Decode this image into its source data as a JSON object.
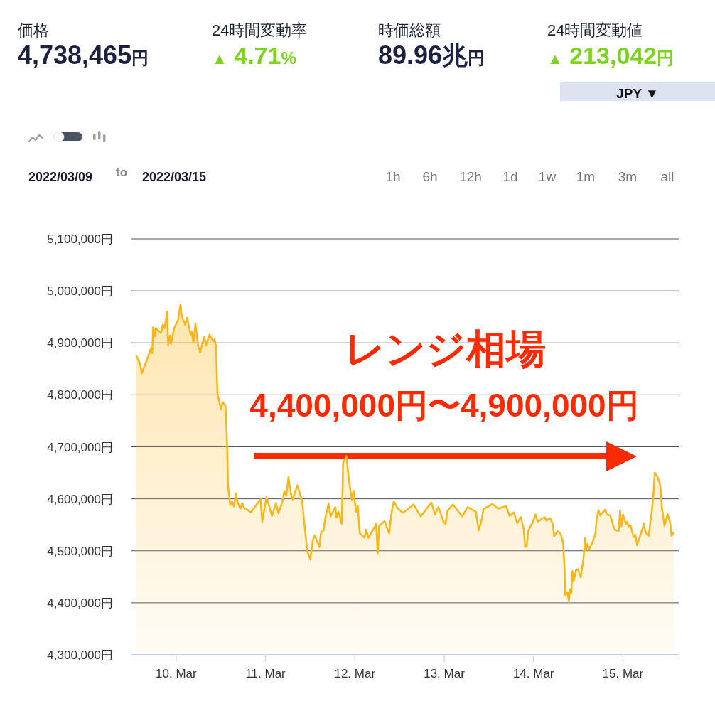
{
  "chart_data": {
    "type": "area",
    "x": [
      "2022-03-09T13:18",
      "2022-03-09T14:12",
      "2022-03-09T14:50",
      "2022-03-09T15:20",
      "2022-03-09T16:06",
      "2022-03-09T17:11",
      "2022-03-09T17:34",
      "2022-03-09T17:49",
      "2022-03-09T18:12",
      "2022-03-09T18:31",
      "2022-03-09T19:55",
      "2022-03-09T20:26",
      "2022-03-09T20:53",
      "2022-03-09T21:35",
      "2022-03-09T21:50",
      "2022-03-09T22:21",
      "2022-03-09T22:36",
      "2022-03-09T23:26",
      "2022-03-10T00:31",
      "2022-03-10T01:09",
      "2022-03-10T01:32",
      "2022-03-10T02:25",
      "2022-03-10T02:56",
      "2022-03-10T03:53",
      "2022-03-10T04:12",
      "2022-03-10T04:39",
      "2022-03-10T05:10",
      "2022-03-10T05:55",
      "2022-03-10T06:26",
      "2022-03-10T07:31",
      "2022-03-10T08:02",
      "2022-03-10T08:59",
      "2022-03-10T09:56",
      "2022-03-10T10:19",
      "2022-03-10T10:42",
      "2022-03-10T11:05",
      "2022-03-10T12:02",
      "2022-03-10T12:29",
      "2022-03-10T13:15",
      "2022-03-10T13:37",
      "2022-03-10T13:57",
      "2022-03-10T14:31",
      "2022-03-10T15:02",
      "2022-03-10T15:32",
      "2022-03-10T16:00",
      "2022-03-10T16:26",
      "2022-03-10T17:15",
      "2022-03-10T17:43",
      "2022-03-10T18:13",
      "2022-03-10T20:07",
      "2022-03-10T21:55",
      "2022-03-10T22:41",
      "2022-03-10T23:07",
      "2022-03-11T00:16",
      "2022-03-11T01:44",
      "2022-03-11T02:49",
      "2022-03-11T03:28",
      "2022-03-11T04:32",
      "2022-03-11T05:03",
      "2022-03-11T05:34",
      "2022-03-11T06:11",
      "2022-03-11T06:49",
      "2022-03-11T07:17",
      "2022-03-11T08:33",
      "2022-03-11T09:49",
      "2022-03-11T10:27",
      "2022-03-11T11:13",
      "2022-03-11T12:03",
      "2022-03-11T12:41",
      "2022-03-11T13:12",
      "2022-03-11T14:28",
      "2022-03-11T14:55",
      "2022-03-11T15:33",
      "2022-03-11T16:00",
      "2022-03-11T16:57",
      "2022-03-11T17:28",
      "2022-03-11T18:45",
      "2022-03-11T19:03",
      "2022-03-11T19:34",
      "2022-03-11T20:28",
      "2022-03-11T20:51",
      "2022-03-11T21:44",
      "2022-03-11T22:26",
      "2022-03-11T23:12",
      "2022-03-11T23:38",
      "2022-03-12T00:21",
      "2022-03-12T00:47",
      "2022-03-12T01:18",
      "2022-03-12T02:35",
      "2022-03-12T03:01",
      "2022-03-12T03:39",
      "2022-03-12T05:15",
      "2022-03-12T05:42",
      "2022-03-12T06:08",
      "2022-03-12T06:31",
      "2022-03-12T07:59",
      "2022-03-12T09:11",
      "2022-03-12T10:02",
      "2022-03-12T10:28",
      "2022-03-12T11:29",
      "2022-03-12T12:54",
      "2022-03-12T15:46",
      "2022-03-12T17:40",
      "2022-03-12T20:33",
      "2022-03-12T21:30",
      "2022-03-12T22:27",
      "2022-03-12T23:51",
      "2022-03-13T00:22",
      "2022-03-13T00:52",
      "2022-03-13T02:23",
      "2022-03-13T04:49",
      "2022-03-13T06:17",
      "2022-03-13T08:30",
      "2022-03-13T09:16",
      "2022-03-13T10:02",
      "2022-03-13T10:33",
      "2022-03-13T12:58",
      "2022-03-13T14:30",
      "2022-03-13T16:36",
      "2022-03-13T17:34",
      "2022-03-13T18:42",
      "2022-03-13T19:36",
      "2022-03-13T20:33",
      "2022-03-13T21:23",
      "2022-03-13T21:42",
      "2022-03-13T22:09",
      "2022-03-13T22:32",
      "2022-03-13T23:48",
      "2022-03-14T00:33",
      "2022-03-14T01:04",
      "2022-03-14T02:59",
      "2022-03-14T03:25",
      "2022-03-14T04:23",
      "2022-03-14T05:08",
      "2022-03-14T05:31",
      "2022-03-14T06:25",
      "2022-03-14T07:15",
      "2022-03-14T07:57",
      "2022-03-14T08:20",
      "2022-03-14T08:31",
      "2022-03-14T09:09",
      "2022-03-14T09:29",
      "2022-03-14T09:48",
      "2022-03-14T10:07",
      "2022-03-14T10:26",
      "2022-03-14T10:46",
      "2022-03-14T11:23",
      "2022-03-14T11:54",
      "2022-03-14T12:40",
      "2022-03-14T13:29",
      "2022-03-14T13:49",
      "2022-03-14T14:04",
      "2022-03-14T14:27",
      "2022-03-14T14:53",
      "2022-03-14T15:51",
      "2022-03-14T16:37",
      "2022-03-14T16:59",
      "2022-03-14T17:27",
      "2022-03-14T17:53",
      "2022-03-14T19:13",
      "2022-03-14T19:40",
      "2022-03-14T20:37",
      "2022-03-14T21:28",
      "2022-03-14T21:54",
      "2022-03-14T22:51",
      "2022-03-14T23:14",
      "2022-03-14T23:37",
      "2022-03-15T00:00",
      "2022-03-15T00:46",
      "2022-03-15T01:09",
      "2022-03-15T01:32",
      "2022-03-15T02:02",
      "2022-03-15T02:52",
      "2022-03-15T03:19",
      "2022-03-15T03:49",
      "2022-03-15T04:43",
      "2022-03-15T05:40",
      "2022-03-15T06:03",
      "2022-03-15T06:57",
      "2022-03-15T07:19",
      "2022-03-15T07:47",
      "2022-03-15T08:13",
      "2022-03-15T08:32",
      "2022-03-15T09:22",
      "2022-03-15T10:04",
      "2022-03-15T10:27",
      "2022-03-15T11:09",
      "2022-03-15T11:59",
      "2022-03-15T12:45",
      "2022-03-15T13:03",
      "2022-03-15T13:38"
    ],
    "series": [
      {
        "color": "#fdb515",
        "values": [
          4875000,
          4862000,
          4842000,
          4853000,
          4866000,
          4889000,
          4880000,
          4930000,
          4912000,
          4928000,
          4919000,
          4935000,
          4928000,
          4960000,
          4896000,
          4914000,
          4898000,
          4928000,
          4944000,
          4974000,
          4951000,
          4935000,
          4948000,
          4916000,
          4921000,
          4900000,
          4937000,
          4894000,
          4882000,
          4912000,
          4896000,
          4916000,
          4903000,
          4907000,
          4894000,
          4802000,
          4773000,
          4786000,
          4779000,
          4716000,
          4624000,
          4588000,
          4595000,
          4585000,
          4610000,
          4594000,
          4581000,
          4592000,
          4583000,
          4574000,
          4592000,
          4599000,
          4556000,
          4604000,
          4567000,
          4592000,
          4572000,
          4595000,
          4615000,
          4606000,
          4642000,
          4610000,
          4599000,
          4626000,
          4597000,
          4551000,
          4499000,
          4483000,
          4520000,
          4530000,
          4507000,
          4536000,
          4539000,
          4561000,
          4591000,
          4566000,
          4584000,
          4564000,
          4575000,
          4552000,
          4670000,
          4682000,
          4634000,
          4598000,
          4616000,
          4575000,
          4586000,
          4534000,
          4525000,
          4541000,
          4525000,
          4545000,
          4552000,
          4495000,
          4548000,
          4557000,
          4534000,
          4582000,
          4595000,
          4582000,
          4573000,
          4589000,
          4566000,
          4593000,
          4570000,
          4584000,
          4555000,
          4552000,
          4577000,
          4589000,
          4566000,
          4584000,
          4575000,
          4539000,
          4559000,
          4580000,
          4590000,
          4581000,
          4586000,
          4567000,
          4574000,
          4553000,
          4565000,
          4541000,
          4508000,
          4508000,
          4538000,
          4556000,
          4570000,
          4556000,
          4565000,
          4558000,
          4563000,
          4552000,
          4528000,
          4538000,
          4533000,
          4515000,
          4465000,
          4414000,
          4421000,
          4401000,
          4426000,
          4419000,
          4461000,
          4442000,
          4462000,
          4465000,
          4449000,
          4490000,
          4524000,
          4501000,
          4513000,
          4502000,
          4517000,
          4533000,
          4564000,
          4578000,
          4568000,
          4579000,
          4570000,
          4568000,
          4547000,
          4540000,
          4538000,
          4578000,
          4547000,
          4570000,
          4552000,
          4556000,
          4547000,
          4549000,
          4526000,
          4531000,
          4511000,
          4531000,
          4552000,
          4536000,
          4529000,
          4552000,
          4578000,
          4611000,
          4650000,
          4641000,
          4625000,
          4585000,
          4548000,
          4571000,
          4552000,
          4529000,
          4535000
        ]
      }
    ],
    "xlim": [
      "2022-03-09T12:00",
      "2022-03-15T15:00"
    ],
    "xticks": [
      {
        "value": "2022-03-10",
        "label": "10. Mar"
      },
      {
        "value": "2022-03-11",
        "label": "11. Mar"
      },
      {
        "value": "2022-03-12",
        "label": "12. Mar"
      },
      {
        "value": "2022-03-13",
        "label": "13. Mar"
      },
      {
        "value": "2022-03-14",
        "label": "14. Mar"
      },
      {
        "value": "2022-03-15",
        "label": "15. Mar"
      }
    ],
    "ylim": [
      4300000,
      5100000
    ],
    "yticks": [
      {
        "value": 4300000,
        "label": "4,300,000円"
      },
      {
        "value": 4400000,
        "label": "4,400,000円"
      },
      {
        "value": 4500000,
        "label": "4,500,000円"
      },
      {
        "value": 4600000,
        "label": "4,600,000円"
      },
      {
        "value": 4700000,
        "label": "4,700,000円"
      },
      {
        "value": 4800000,
        "label": "4,800,000円"
      },
      {
        "value": 4900000,
        "label": "4,900,000円"
      },
      {
        "value": 5000000,
        "label": "5,000,000円"
      },
      {
        "value": 5100000,
        "label": "5,100,000円"
      }
    ],
    "grid": "y",
    "annotations": [
      "価格",
      "4,738,465円",
      "24時間変動率",
      "▲ 4.71%",
      "時価総額",
      "89.96兆円",
      "24時間変動値",
      "▲ 213,042円",
      "JPY ▼",
      "2022/03/09",
      "to",
      "2022/03/15",
      "1h",
      "6h",
      "12h",
      "1d",
      "1w",
      "1m",
      "3m",
      "all",
      "レンジ相場",
      "4,400,000円〜4,900,000円"
    ]
  }
}
